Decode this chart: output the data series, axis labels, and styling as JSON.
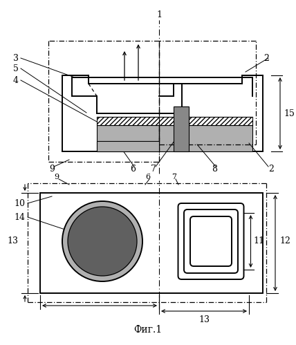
{
  "background": "#ffffff",
  "lc": "#000000",
  "gray_light": "#b0b0b0",
  "gray_med": "#888888",
  "gray_dark": "#606060",
  "gray_fill": "#999999",
  "title": "Фиг.1"
}
